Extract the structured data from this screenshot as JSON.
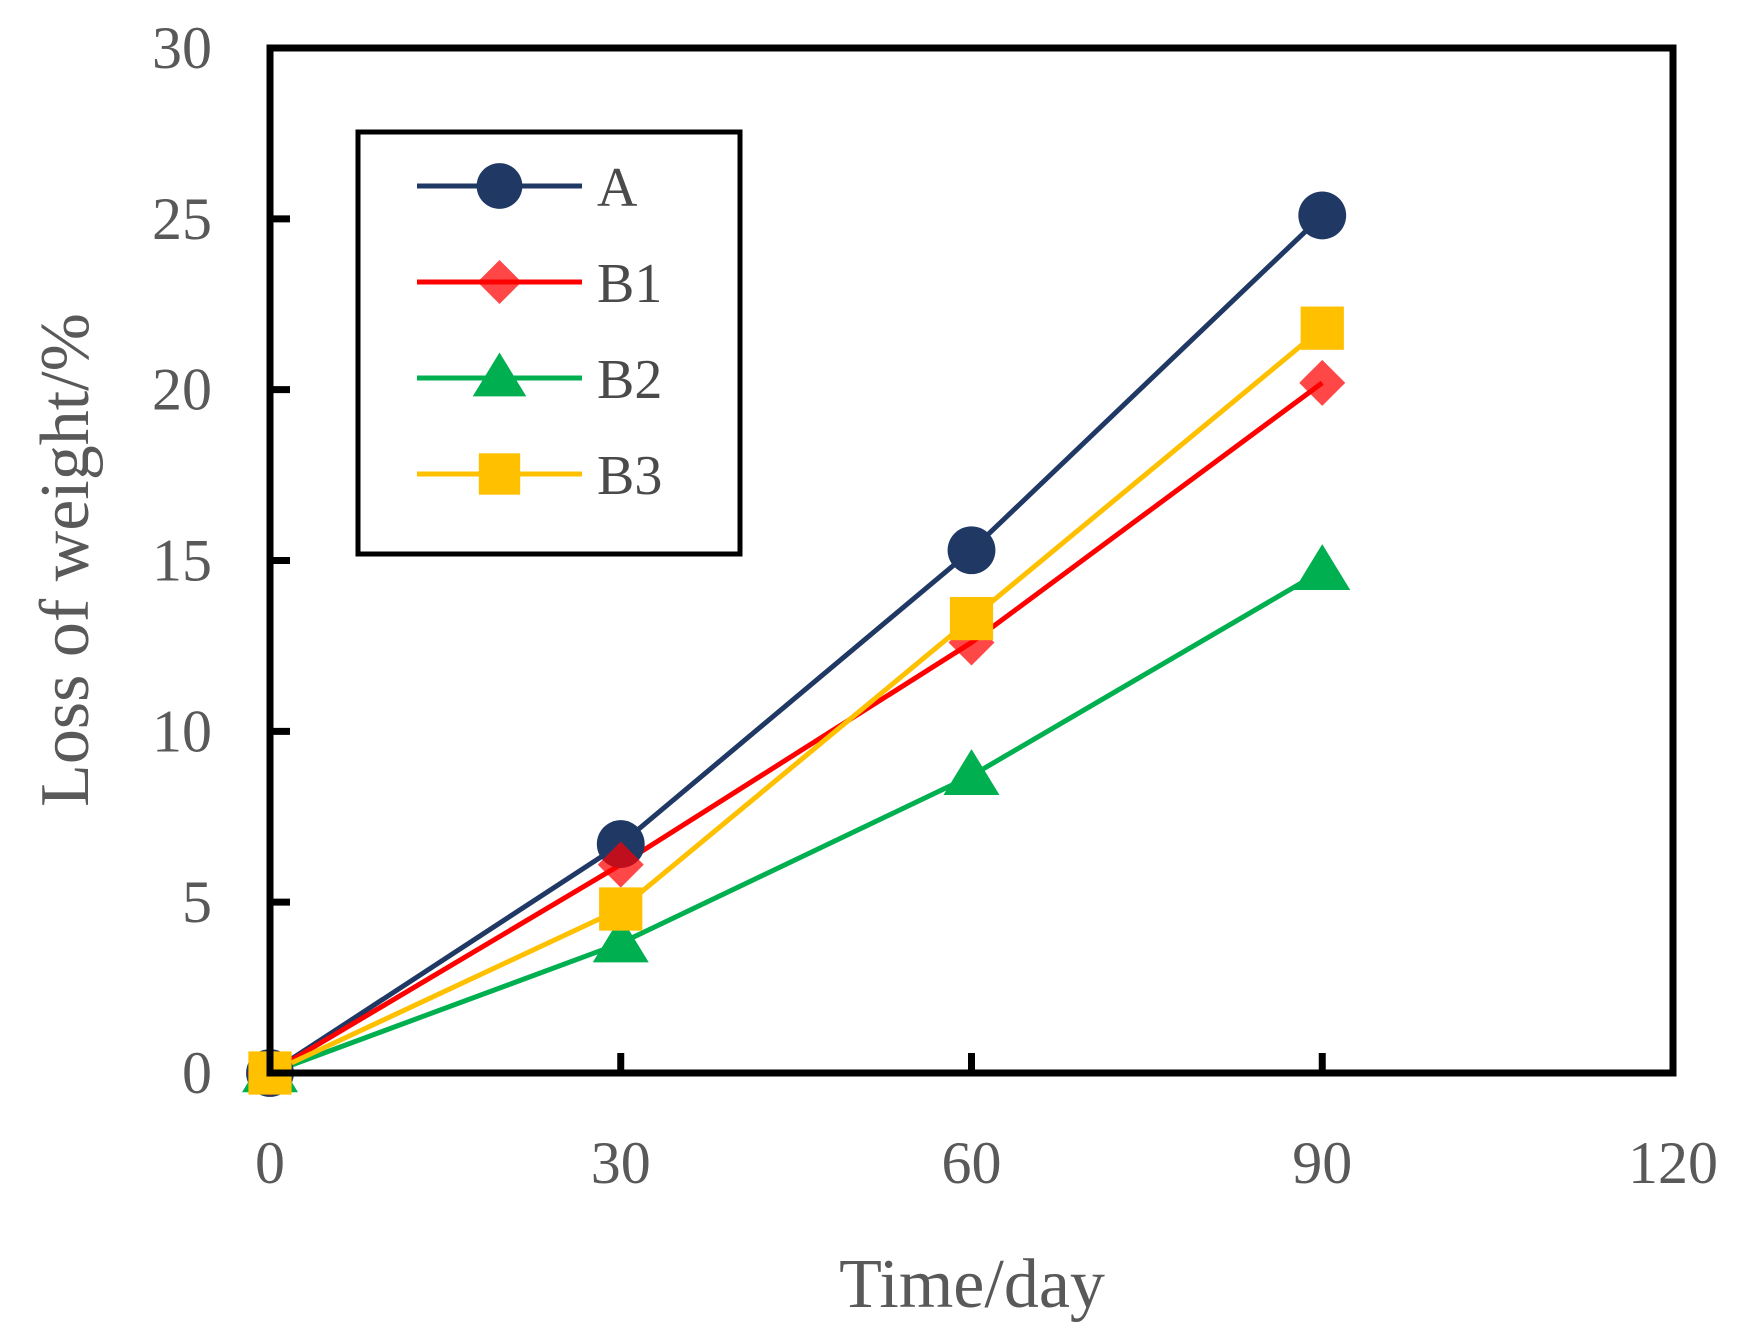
{
  "chart_data": {
    "type": "line",
    "title": "",
    "xlabel": "Time/day",
    "ylabel": "Loss of weight/%",
    "xlim": [
      0,
      120
    ],
    "ylim": [
      0,
      30
    ],
    "xticks": [
      0,
      30,
      60,
      90,
      120
    ],
    "yticks": [
      0,
      5,
      10,
      15,
      20,
      25,
      30
    ],
    "xtick_labels": [
      "0",
      "30",
      "60",
      "90",
      "120"
    ],
    "ytick_labels": [
      "0",
      "5",
      "10",
      "15",
      "20",
      "25",
      "30"
    ],
    "grid": false,
    "legend_position": "top-left",
    "x": [
      0,
      30,
      60,
      90
    ],
    "series": [
      {
        "name": "A",
        "values": [
          0,
          6.7,
          15.3,
          25.1
        ],
        "color": "#1f3864",
        "marker": "circle"
      },
      {
        "name": "B1",
        "values": [
          0,
          6.1,
          12.6,
          20.2
        ],
        "color": "#ff0000",
        "marker": "diamond"
      },
      {
        "name": "B2",
        "values": [
          0,
          3.8,
          8.7,
          14.7
        ],
        "color": "#00b050",
        "marker": "triangle"
      },
      {
        "name": "B3",
        "values": [
          0,
          4.8,
          13.3,
          21.8
        ],
        "color": "#ffc000",
        "marker": "square"
      }
    ]
  }
}
